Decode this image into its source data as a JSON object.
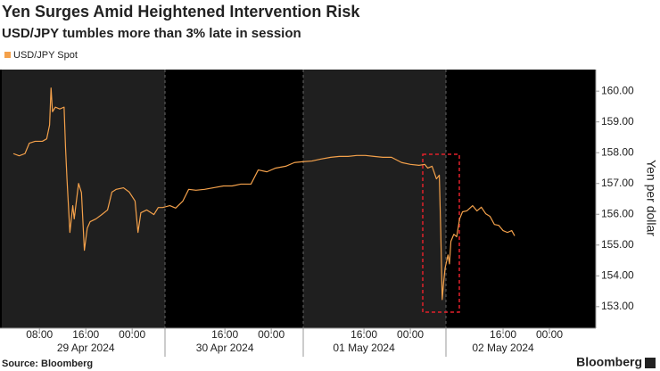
{
  "chart_data": {
    "type": "line",
    "title": "Yen Surges Amid Heightened Intervention Risk",
    "subtitle": "USD/JPY tumbles more than 3% late in session",
    "y_axis_label": "Yen per dollar",
    "source": "Source: Bloomberg",
    "brand": "Bloomberg",
    "x": [
      "2024-04-29 03:30",
      "2024-04-29 04:30",
      "2024-04-29 05:30",
      "2024-04-29 06:15",
      "2024-04-29 07:15",
      "2024-04-29 08:30",
      "2024-04-29 09:15",
      "2024-04-29 09:45",
      "2024-04-29 10:00",
      "2024-04-29 10:15",
      "2024-04-29 10:45",
      "2024-04-29 11:30",
      "2024-04-29 12:15",
      "2024-04-29 12:30",
      "2024-04-29 12:45",
      "2024-04-29 13:15",
      "2024-04-29 13:45",
      "2024-04-29 14:00",
      "2024-04-29 14:45",
      "2024-04-29 15:15",
      "2024-04-29 15:45",
      "2024-04-29 16:15",
      "2024-04-29 16:45",
      "2024-04-29 17:45",
      "2024-04-29 18:45",
      "2024-04-29 19:45",
      "2024-04-29 20:30",
      "2024-04-29 21:15",
      "2024-04-29 22:30",
      "2024-04-29 23:30",
      "2024-04-30 00:30",
      "2024-04-30 01:00",
      "2024-04-30 01:30",
      "2024-04-30 02:30",
      "2024-04-30 03:45",
      "2024-04-30 04:30",
      "2024-04-30 05:15",
      "2024-04-30 06:30",
      "2024-04-30 07:30",
      "2024-04-30 08:45",
      "2024-04-30 09:45",
      "2024-04-30 11:00",
      "2024-04-30 12:30",
      "2024-04-30 14:00",
      "2024-04-30 15:45",
      "2024-04-30 17:15",
      "2024-04-30 18:45",
      "2024-04-30 20:30",
      "2024-04-30 21:45",
      "2024-04-30 23:15",
      "2024-05-01 00:45",
      "2024-05-01 02:30",
      "2024-05-01 04:00",
      "2024-05-01 05:30",
      "2024-05-01 07:00",
      "2024-05-01 08:30",
      "2024-05-01 10:15",
      "2024-05-01 11:45",
      "2024-05-01 13:15",
      "2024-05-01 14:45",
      "2024-05-01 16:15",
      "2024-05-01 17:45",
      "2024-05-01 19:15",
      "2024-05-01 20:45",
      "2024-05-01 22:30",
      "2024-05-02 00:00",
      "2024-05-02 01:30",
      "2024-05-02 02:30",
      "2024-05-02 03:00",
      "2024-05-02 03:45",
      "2024-05-02 04:30",
      "2024-05-02 05:00",
      "2024-05-02 05:15",
      "2024-05-02 05:30",
      "2024-05-02 05:45",
      "2024-05-02 06:00",
      "2024-05-02 06:30",
      "2024-05-02 06:45",
      "2024-05-02 07:00",
      "2024-05-02 07:30",
      "2024-05-02 08:00",
      "2024-05-02 08:30",
      "2024-05-02 09:00",
      "2024-05-02 09:45",
      "2024-05-02 10:45",
      "2024-05-02 11:30",
      "2024-05-02 12:15",
      "2024-05-02 13:00",
      "2024-05-02 13:45",
      "2024-05-02 14:30",
      "2024-05-02 15:15",
      "2024-05-02 16:00",
      "2024-05-02 16:45",
      "2024-05-02 17:30",
      "2024-05-02 18:00"
    ],
    "series": [
      {
        "name": "USD/JPY Spot",
        "color": "#f4a14b",
        "values": [
          157.97,
          157.9,
          157.97,
          158.31,
          158.37,
          158.37,
          158.45,
          158.9,
          160.1,
          159.33,
          159.48,
          159.42,
          159.48,
          158.17,
          157.15,
          155.41,
          156.28,
          155.85,
          157.0,
          156.7,
          154.83,
          155.55,
          155.76,
          155.85,
          155.99,
          156.14,
          156.72,
          156.81,
          156.86,
          156.72,
          156.43,
          155.41,
          156.05,
          156.14,
          155.99,
          156.22,
          156.22,
          156.28,
          156.2,
          156.43,
          156.81,
          156.78,
          156.81,
          156.86,
          156.92,
          156.92,
          156.98,
          156.98,
          157.44,
          157.38,
          157.5,
          157.56,
          157.68,
          157.71,
          157.73,
          157.79,
          157.85,
          157.88,
          157.88,
          157.91,
          157.91,
          157.88,
          157.85,
          157.85,
          157.68,
          157.62,
          157.59,
          157.62,
          157.5,
          157.56,
          157.15,
          157.27,
          155.41,
          153.23,
          153.8,
          154.25,
          154.68,
          154.39,
          155.12,
          155.35,
          155.27,
          155.85,
          156.08,
          156.11,
          156.28,
          156.11,
          156.23,
          156.02,
          155.93,
          155.67,
          155.64,
          155.47,
          155.41,
          155.47,
          155.3
        ]
      }
    ],
    "xlim": [
      "2024-04-29 01:30",
      "2024-05-03 08:00"
    ],
    "xticks": [
      {
        "value": "2024-04-29 08:00",
        "label": "08:00"
      },
      {
        "value": "2024-04-29 16:00",
        "label": "16:00"
      },
      {
        "value": "2024-04-30 00:00",
        "label": "00:00"
      },
      {
        "value": "2024-04-30 16:00",
        "label": "16:00"
      },
      {
        "value": "2024-05-01 00:00",
        "label": "00:00"
      },
      {
        "value": "2024-05-01 16:00",
        "label": "16:00"
      },
      {
        "value": "2024-05-02 00:00",
        "label": "00:00"
      },
      {
        "value": "2024-05-02 16:00",
        "label": "16:00"
      },
      {
        "value": "2024-05-03 00:00",
        "label": "00:00"
      }
    ],
    "xdays": [
      {
        "value": "2024-04-29 16:00",
        "label": "29 Apr 2024"
      },
      {
        "value": "2024-04-30 16:00",
        "label": "30 Apr 2024"
      },
      {
        "value": "2024-05-01 16:00",
        "label": "01 May 2024"
      },
      {
        "value": "2024-05-02 16:00",
        "label": "02 May 2024"
      }
    ],
    "ylim": [
      152.3,
      160.7
    ],
    "yticks": [
      {
        "value": 153,
        "label": "153.00"
      },
      {
        "value": 154,
        "label": "154.00"
      },
      {
        "value": 155,
        "label": "155.00"
      },
      {
        "value": 156,
        "label": "156.00"
      },
      {
        "value": 157,
        "label": "157.00"
      },
      {
        "value": 158,
        "label": "158.00"
      },
      {
        "value": 159,
        "label": "159.00"
      },
      {
        "value": 160,
        "label": "160.00"
      }
    ],
    "grid": false
  }
}
